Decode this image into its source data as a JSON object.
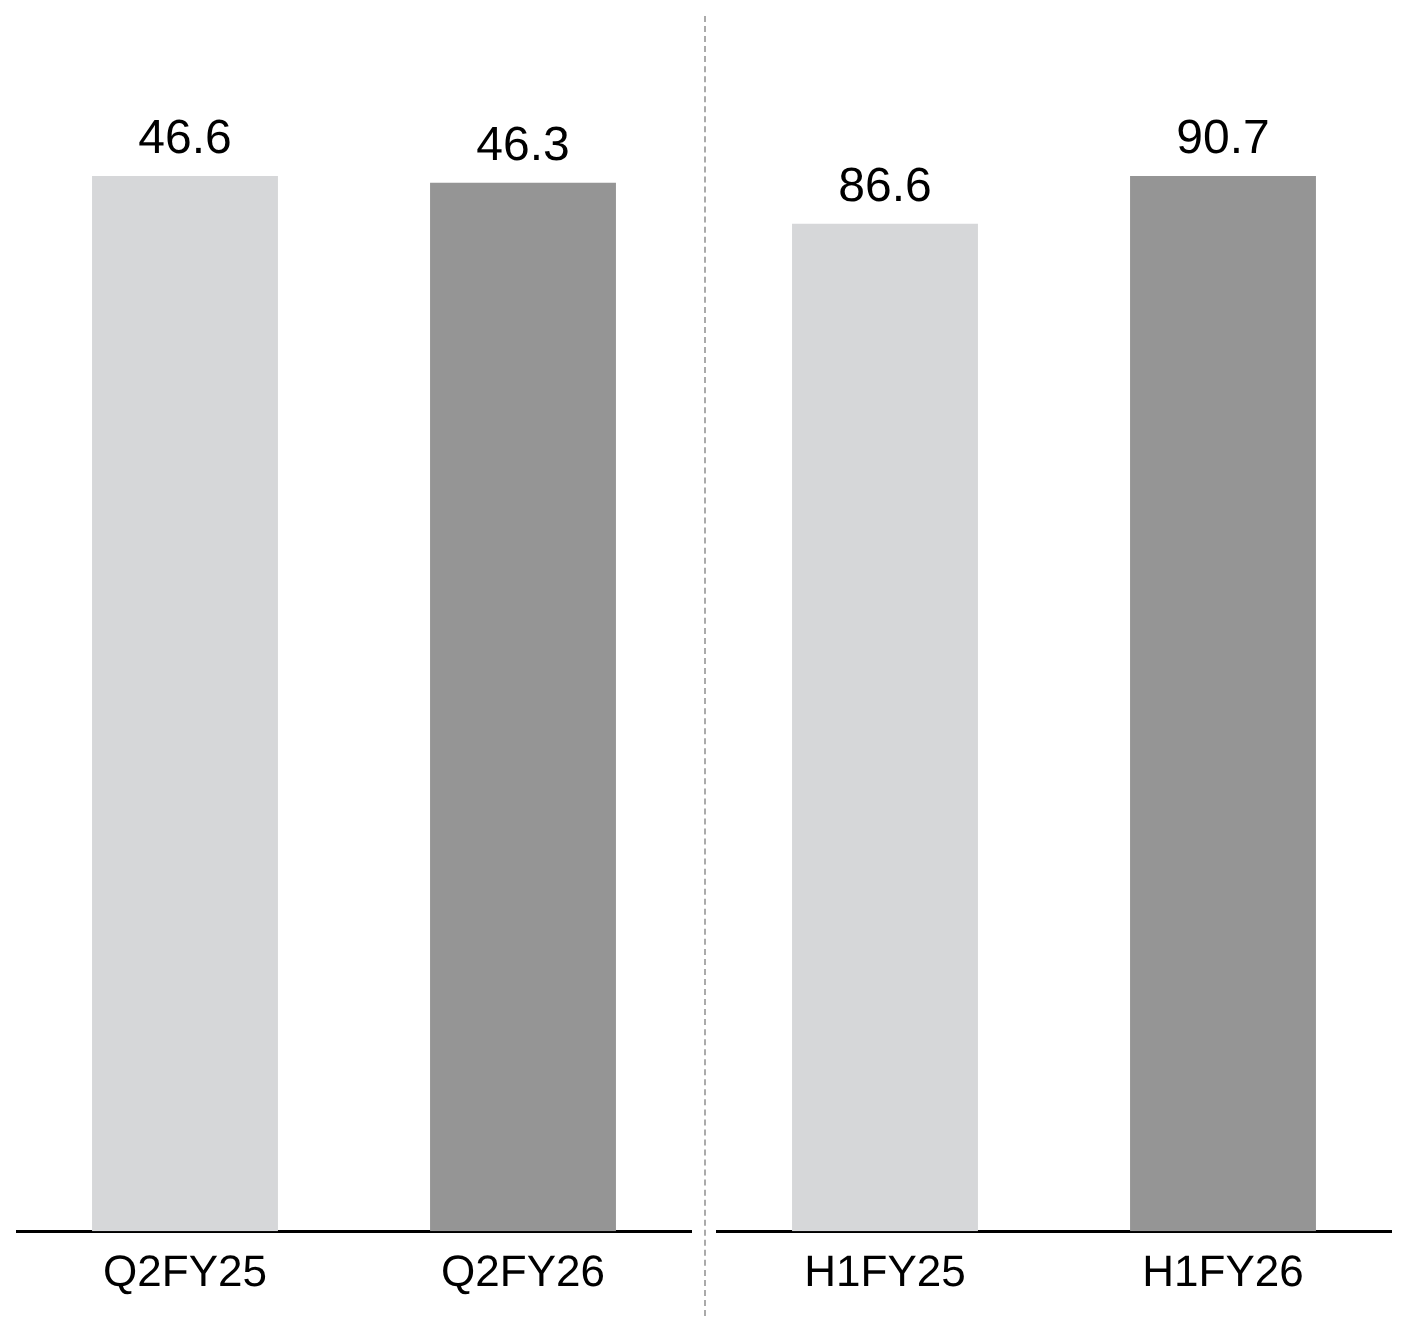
{
  "chart_data": [
    {
      "type": "bar",
      "categories": [
        "Q2FY25",
        "Q2FY26"
      ],
      "values": [
        46.6,
        46.3
      ],
      "colors": [
        "#d6d7d9",
        "#959595"
      ],
      "data_labels": true,
      "grid": false,
      "legend": false
    },
    {
      "type": "bar",
      "categories": [
        "H1FY25",
        "H1FY26"
      ],
      "values": [
        86.6,
        90.7
      ],
      "colors": [
        "#d6d7d9",
        "#959595"
      ],
      "data_labels": true,
      "grid": false,
      "legend": false
    }
  ]
}
